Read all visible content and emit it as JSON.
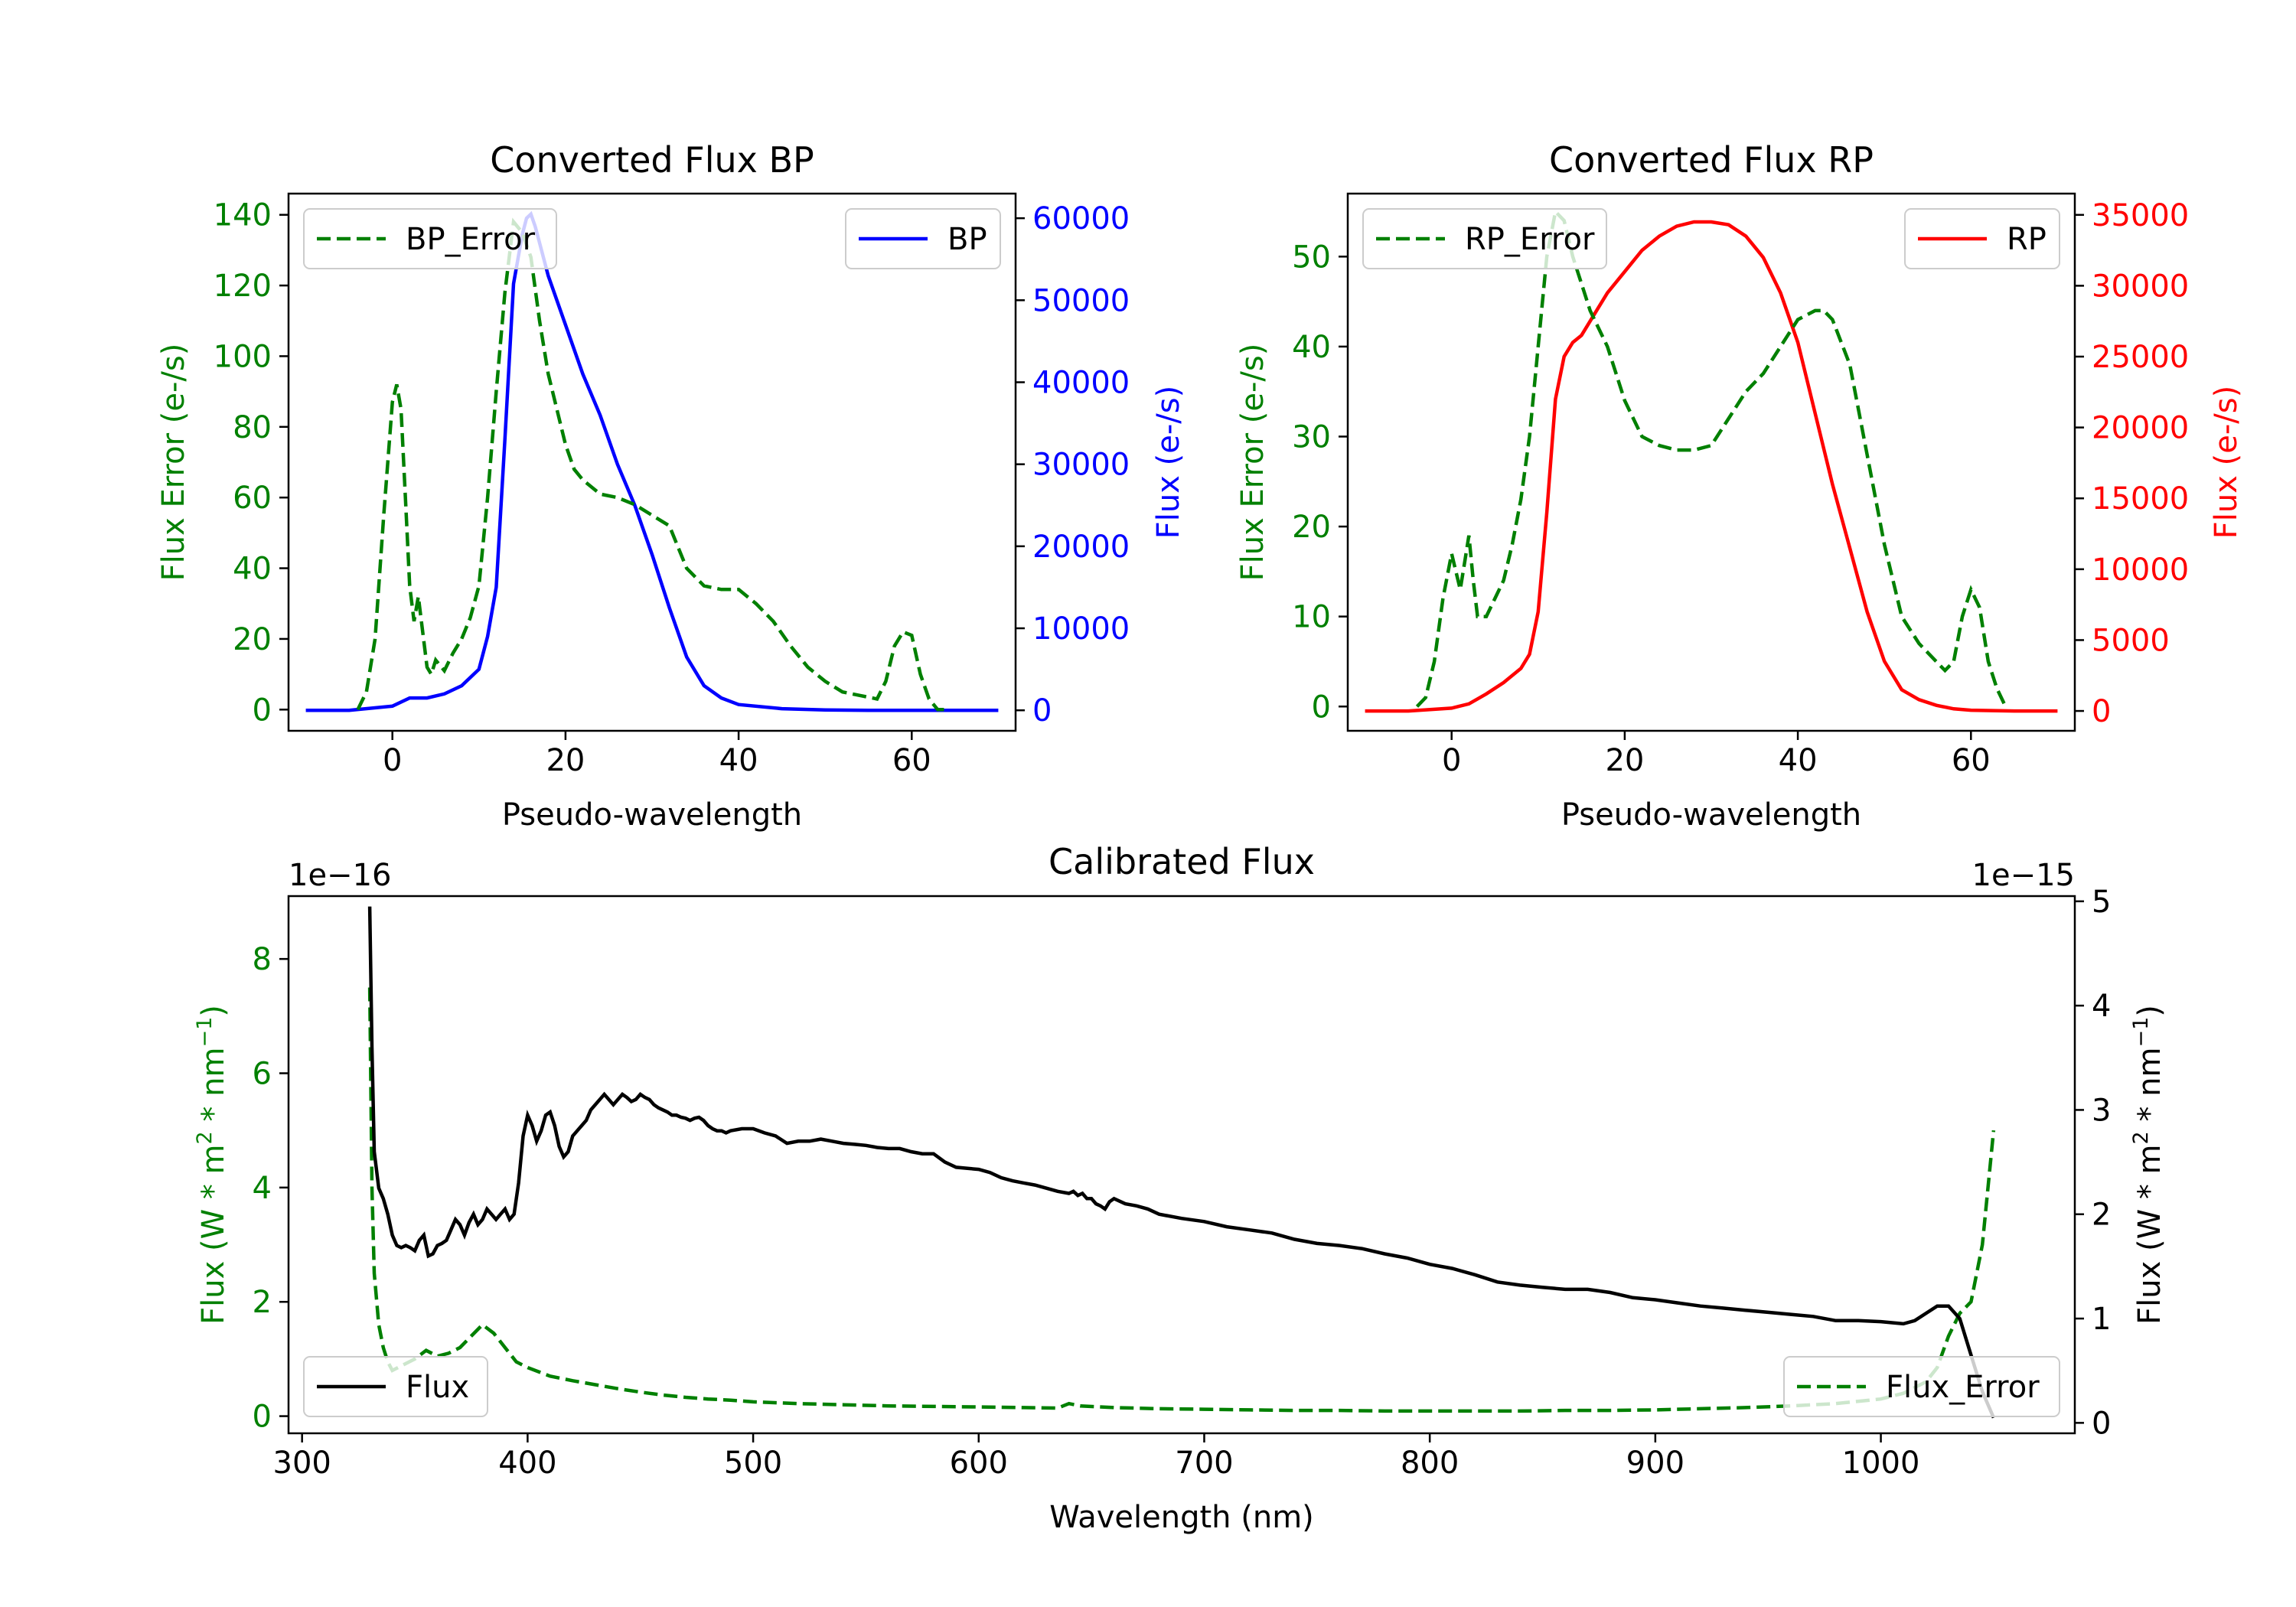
{
  "chart_data": [
    {
      "id": "bp",
      "type": "line",
      "title": "Converted Flux BP",
      "xlabel": "Pseudo-wavelength",
      "ylabel_left": "Flux Error (e-/s)",
      "ylabel_right": "Flux (e-/s)",
      "xlim": [
        -12,
        72
      ],
      "ylim_left": [
        -6,
        146
      ],
      "ylim_right": [
        -2500,
        63000
      ],
      "xticks": [
        0,
        20,
        40,
        60
      ],
      "yticks_left": [
        0,
        20,
        40,
        60,
        80,
        100,
        120,
        140
      ],
      "yticks_right": [
        0,
        10000,
        20000,
        30000,
        40000,
        50000,
        60000
      ],
      "left_color": "#008000",
      "right_color": "#0000ff",
      "legend_left": "BP_Error",
      "legend_right": "BP",
      "series_left": {
        "name": "BP_Error",
        "style": "dashed",
        "color": "#008000",
        "x": [
          -4,
          -3,
          -2,
          -1,
          0,
          0.5,
          1,
          1.5,
          2,
          2.5,
          3,
          3.5,
          4,
          4.5,
          5,
          6,
          7,
          8,
          9,
          10,
          11,
          12,
          13,
          14,
          15,
          16,
          17,
          18,
          19,
          20,
          21,
          22,
          24,
          26,
          28,
          30,
          32,
          34,
          36,
          38,
          40,
          42,
          44,
          46,
          48,
          50,
          52,
          54,
          56,
          57,
          58,
          59,
          60,
          61,
          62,
          63,
          64
        ],
        "y": [
          0,
          5,
          20,
          55,
          87,
          92,
          85,
          60,
          35,
          25,
          32,
          22,
          12,
          10,
          14,
          11,
          16,
          20,
          26,
          35,
          60,
          90,
          118,
          138,
          135,
          128,
          110,
          95,
          85,
          75,
          68,
          65,
          61,
          60,
          58,
          55,
          52,
          40,
          35,
          34,
          34,
          30,
          25,
          18,
          12,
          8,
          5,
          4,
          3,
          8,
          18,
          22,
          21,
          10,
          3,
          0,
          0
        ]
      },
      "series_right": {
        "name": "BP",
        "style": "solid",
        "color": "#0000ff",
        "x": [
          -10,
          -5,
          0,
          2,
          4,
          6,
          8,
          10,
          11,
          12,
          13,
          14,
          15,
          15.5,
          16,
          16.5,
          17,
          18,
          20,
          22,
          24,
          26,
          28,
          30,
          32,
          34,
          36,
          38,
          40,
          45,
          50,
          55,
          60,
          65,
          70
        ],
        "y": [
          0,
          0,
          500,
          1500,
          1500,
          2000,
          3000,
          5000,
          9000,
          15000,
          33000,
          52000,
          58000,
          60000,
          60500,
          59000,
          57000,
          53000,
          47000,
          41000,
          36000,
          30000,
          25000,
          19000,
          12500,
          6500,
          3000,
          1500,
          700,
          200,
          50,
          0,
          0,
          0,
          0
        ]
      }
    },
    {
      "id": "rp",
      "type": "line",
      "title": "Converted Flux RP",
      "xlabel": "Pseudo-wavelength",
      "ylabel_left": "Flux Error (e-/s)",
      "ylabel_right": "Flux (e-/s)",
      "xlim": [
        -12,
        72
      ],
      "ylim_left": [
        -2.7,
        57
      ],
      "ylim_right": [
        -1400,
        36500
      ],
      "xticks": [
        0,
        20,
        40,
        60
      ],
      "yticks_left": [
        0,
        10,
        20,
        30,
        40,
        50
      ],
      "yticks_right": [
        0,
        5000,
        10000,
        15000,
        20000,
        25000,
        30000,
        35000
      ],
      "left_color": "#008000",
      "right_color": "#ff0000",
      "legend_left": "RP_Error",
      "legend_right": "RP",
      "series_left": {
        "name": "RP_Error",
        "style": "dashed",
        "color": "#008000",
        "x": [
          -4,
          -3,
          -2,
          -1,
          0,
          1,
          1.5,
          2,
          2.5,
          3,
          4,
          5,
          6,
          7,
          8,
          9,
          10,
          11,
          12,
          13,
          14,
          15,
          16,
          18,
          20,
          22,
          24,
          26,
          28,
          30,
          32,
          34,
          36,
          38,
          40,
          42,
          43,
          44,
          46,
          48,
          50,
          52,
          54,
          56,
          57,
          58,
          59,
          60,
          61,
          62,
          63,
          64
        ],
        "y": [
          0,
          1,
          5,
          12,
          17,
          13,
          16,
          19,
          14,
          10,
          10,
          12,
          14,
          18,
          23,
          30,
          40,
          50,
          55,
          54,
          50,
          47,
          44,
          40,
          34,
          30,
          29,
          28.5,
          28.5,
          29,
          32,
          35,
          37,
          40,
          43,
          44,
          44,
          43,
          38,
          28,
          18,
          10,
          7,
          5,
          4,
          5,
          10,
          13,
          11,
          5,
          2,
          0
        ]
      },
      "series_right": {
        "name": "RP",
        "style": "solid",
        "color": "#ff0000",
        "x": [
          -10,
          -5,
          0,
          2,
          4,
          6,
          8,
          9,
          10,
          11,
          12,
          13,
          14,
          15,
          16,
          18,
          20,
          22,
          24,
          26,
          28,
          30,
          32,
          34,
          36,
          38,
          40,
          42,
          44,
          46,
          48,
          50,
          52,
          54,
          56,
          58,
          60,
          65,
          70
        ],
        "y": [
          0,
          0,
          200,
          500,
          1200,
          2000,
          3000,
          4000,
          7000,
          14000,
          22000,
          25000,
          26000,
          26500,
          27500,
          29500,
          31000,
          32500,
          33500,
          34200,
          34500,
          34500,
          34300,
          33500,
          32000,
          29500,
          26000,
          21000,
          16000,
          11500,
          7000,
          3500,
          1500,
          800,
          400,
          150,
          50,
          0,
          0
        ]
      }
    },
    {
      "id": "calib",
      "type": "line",
      "title": "Calibrated Flux",
      "xlabel": "Wavelength (nm)",
      "ylabel_left": "Flux (W * m$^2$ * nm$^{-1}$)",
      "ylabel_right": "Flux (W * m$^2$ * nm$^{-1}$)",
      "ylabel_left_text": [
        "Flux (W * m",
        "2",
        " * nm",
        "−1",
        ")"
      ],
      "ylabel_right_text": [
        "Flux (W * m",
        "2",
        " * nm",
        "−1",
        ")"
      ],
      "left_offset_label": "1e−16",
      "right_offset_label": "1e−15",
      "xlim": [
        294,
        1086
      ],
      "ylim_left": [
        -0.3,
        9.1
      ],
      "ylim_right": [
        -0.1,
        5.05
      ],
      "xticks": [
        300,
        400,
        500,
        600,
        700,
        800,
        900,
        1000
      ],
      "yticks_left": [
        0,
        2,
        4,
        6,
        8
      ],
      "yticks_right": [
        0,
        1,
        2,
        3,
        4,
        5
      ],
      "left_color": "#008000",
      "right_color": "#000000",
      "legend_left": "Flux",
      "legend_right": "Flux_Error",
      "series_flux": {
        "name": "Flux",
        "style": "solid",
        "color": "#000000",
        "axis": "right",
        "x": [
          330,
          331,
          332,
          334,
          336,
          338,
          340,
          342,
          344,
          346,
          348,
          350,
          352,
          354,
          356,
          358,
          360,
          362,
          364,
          366,
          368,
          370,
          372,
          374,
          376,
          378,
          380,
          382,
          384,
          386,
          388,
          390,
          392,
          394,
          396,
          398,
          400,
          402,
          404,
          406,
          408,
          410,
          412,
          414,
          416,
          418,
          420,
          422,
          424,
          426,
          428,
          430,
          432,
          434,
          436,
          438,
          440,
          442,
          444,
          446,
          448,
          450,
          452,
          454,
          456,
          458,
          460,
          462,
          464,
          466,
          468,
          470,
          472,
          474,
          476,
          478,
          480,
          482,
          484,
          486,
          488,
          490,
          495,
          500,
          505,
          510,
          515,
          520,
          525,
          530,
          535,
          540,
          545,
          550,
          555,
          560,
          565,
          570,
          575,
          580,
          585,
          590,
          595,
          600,
          605,
          610,
          615,
          620,
          625,
          630,
          635,
          640,
          642,
          644,
          646,
          648,
          650,
          652,
          654,
          656,
          658,
          660,
          665,
          670,
          675,
          680,
          690,
          700,
          710,
          720,
          730,
          740,
          750,
          760,
          770,
          780,
          790,
          800,
          810,
          820,
          830,
          840,
          850,
          860,
          870,
          880,
          890,
          900,
          910,
          920,
          930,
          940,
          950,
          960,
          970,
          980,
          990,
          1000,
          1005,
          1010,
          1015,
          1020,
          1025,
          1030,
          1035,
          1040,
          1045,
          1050
        ],
        "y": [
          4.95,
          3.6,
          2.6,
          2.25,
          2.15,
          2.0,
          1.8,
          1.7,
          1.68,
          1.7,
          1.68,
          1.65,
          1.75,
          1.8,
          1.6,
          1.62,
          1.7,
          1.72,
          1.75,
          1.85,
          1.95,
          1.9,
          1.8,
          1.92,
          2.0,
          1.9,
          1.95,
          2.05,
          2.0,
          1.95,
          2.0,
          2.05,
          1.95,
          2.0,
          2.3,
          2.75,
          2.95,
          2.85,
          2.7,
          2.8,
          2.95,
          2.98,
          2.85,
          2.65,
          2.55,
          2.6,
          2.75,
          2.8,
          2.85,
          2.9,
          3.0,
          3.05,
          3.1,
          3.15,
          3.1,
          3.05,
          3.1,
          3.15,
          3.12,
          3.08,
          3.1,
          3.15,
          3.12,
          3.1,
          3.05,
          3.02,
          3.0,
          2.98,
          2.95,
          2.95,
          2.93,
          2.92,
          2.9,
          2.92,
          2.93,
          2.9,
          2.85,
          2.82,
          2.8,
          2.8,
          2.78,
          2.8,
          2.82,
          2.82,
          2.78,
          2.75,
          2.68,
          2.7,
          2.7,
          2.72,
          2.7,
          2.68,
          2.67,
          2.66,
          2.64,
          2.63,
          2.63,
          2.6,
          2.58,
          2.58,
          2.5,
          2.45,
          2.44,
          2.43,
          2.4,
          2.35,
          2.32,
          2.3,
          2.28,
          2.25,
          2.22,
          2.2,
          2.22,
          2.18,
          2.2,
          2.15,
          2.15,
          2.1,
          2.08,
          2.05,
          2.12,
          2.15,
          2.1,
          2.08,
          2.05,
          2.0,
          1.96,
          1.93,
          1.88,
          1.85,
          1.82,
          1.76,
          1.72,
          1.7,
          1.67,
          1.62,
          1.58,
          1.52,
          1.48,
          1.42,
          1.35,
          1.32,
          1.3,
          1.28,
          1.28,
          1.25,
          1.2,
          1.18,
          1.15,
          1.12,
          1.1,
          1.08,
          1.06,
          1.04,
          1.02,
          0.98,
          0.98,
          0.97,
          0.96,
          0.95,
          0.98,
          1.05,
          1.12,
          1.12,
          1.0,
          0.65,
          0.3,
          0.05
        ]
      },
      "series_error": {
        "name": "Flux_Error",
        "style": "dashed",
        "color": "#008000",
        "axis": "left",
        "x": [
          330,
          331,
          332,
          334,
          336,
          338,
          340,
          345,
          350,
          355,
          360,
          365,
          370,
          375,
          380,
          385,
          390,
          395,
          400,
          410,
          420,
          430,
          440,
          450,
          460,
          470,
          480,
          490,
          500,
          520,
          540,
          560,
          580,
          600,
          620,
          635,
          640,
          645,
          660,
          680,
          700,
          720,
          740,
          760,
          780,
          800,
          820,
          840,
          860,
          880,
          900,
          920,
          940,
          960,
          980,
          1000,
          1010,
          1020,
          1025,
          1030,
          1035,
          1040,
          1045,
          1050
        ],
        "y": [
          7.5,
          4.0,
          2.5,
          1.6,
          1.2,
          0.95,
          0.8,
          0.9,
          1.0,
          1.15,
          1.05,
          1.1,
          1.2,
          1.4,
          1.6,
          1.45,
          1.2,
          0.95,
          0.85,
          0.7,
          0.62,
          0.55,
          0.48,
          0.42,
          0.37,
          0.33,
          0.3,
          0.28,
          0.25,
          0.22,
          0.2,
          0.18,
          0.17,
          0.16,
          0.15,
          0.14,
          0.22,
          0.18,
          0.15,
          0.13,
          0.12,
          0.11,
          0.1,
          0.1,
          0.09,
          0.09,
          0.09,
          0.09,
          0.1,
          0.1,
          0.11,
          0.13,
          0.15,
          0.18,
          0.22,
          0.3,
          0.4,
          0.6,
          0.85,
          1.4,
          1.8,
          2.0,
          3.0,
          5.0
        ]
      }
    }
  ]
}
